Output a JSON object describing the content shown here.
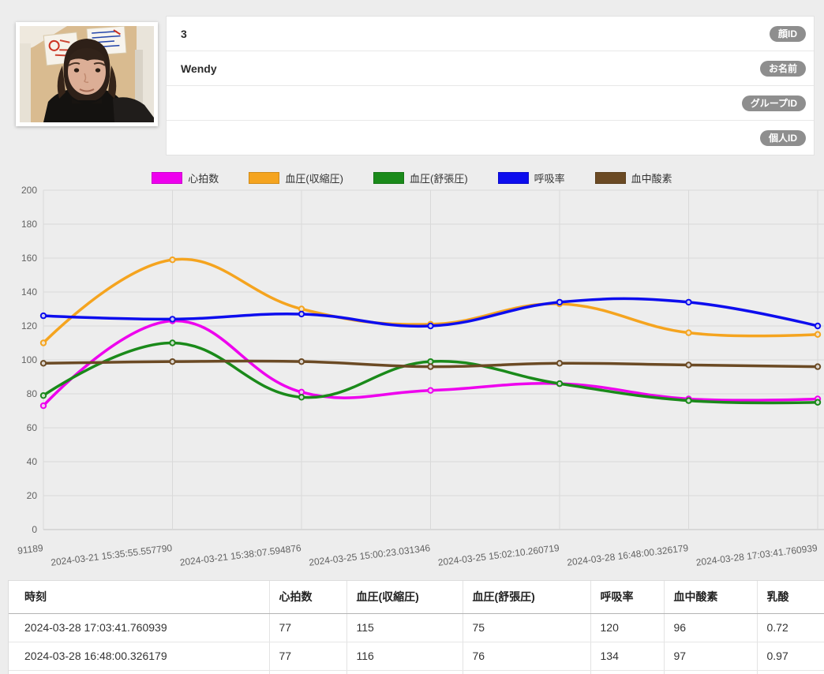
{
  "profile": {
    "fields": [
      {
        "value": "3",
        "badge": "顔ID"
      },
      {
        "value": "Wendy",
        "badge": "お名前"
      },
      {
        "value": "",
        "badge": "グループID"
      },
      {
        "value": "",
        "badge": "個人ID"
      }
    ]
  },
  "chart_data": {
    "type": "line",
    "title": "",
    "xlabel": "",
    "ylabel": "",
    "ylim": [
      0,
      200
    ],
    "y_tick_step": 20,
    "grid": true,
    "legend_position": "top",
    "x_labels": [
      "91189",
      "2024-03-21 15:35:55.557790",
      "2024-03-21 15:38:07.594876",
      "2024-03-25 15:00:23.031346",
      "2024-03-25 15:02:10.260719",
      "2024-03-28 16:48:00.326179",
      "2024-03-28 17:03:41.760939"
    ],
    "series": [
      {
        "key": "heart-rate",
        "name": "心拍数",
        "color": "#ee00ee",
        "values": [
          73,
          123,
          81,
          82,
          86,
          77,
          77
        ]
      },
      {
        "key": "bp-systolic",
        "name": "血圧(収縮圧)",
        "color": "#f5a41f",
        "values": [
          110,
          159,
          130,
          121,
          133,
          116,
          115
        ]
      },
      {
        "key": "bp-diastolic",
        "name": "血圧(舒張圧)",
        "color": "#1a8a1a",
        "values": [
          79,
          110,
          78,
          99,
          86,
          76,
          75
        ]
      },
      {
        "key": "resp-rate",
        "name": "呼吸率",
        "color": "#0d0dee",
        "values": [
          126,
          124,
          127,
          120,
          134,
          134,
          120
        ]
      },
      {
        "key": "blood-oxygen",
        "name": "血中酸素",
        "color": "#6b4a24",
        "values": [
          98,
          99,
          99,
          96,
          98,
          97,
          96
        ]
      }
    ]
  },
  "table": {
    "headers": [
      "時刻",
      "心拍数",
      "血圧(収縮圧)",
      "血圧(舒張圧)",
      "呼吸率",
      "血中酸素",
      "乳酸"
    ],
    "rows": [
      [
        "2024-03-28 17:03:41.760939",
        "77",
        "115",
        "75",
        "120",
        "96",
        "0.72"
      ],
      [
        "2024-03-28 16:48:00.326179",
        "77",
        "116",
        "76",
        "134",
        "97",
        "0.97"
      ],
      [
        "",
        "",
        "",
        "",
        "",
        "",
        ""
      ]
    ]
  }
}
